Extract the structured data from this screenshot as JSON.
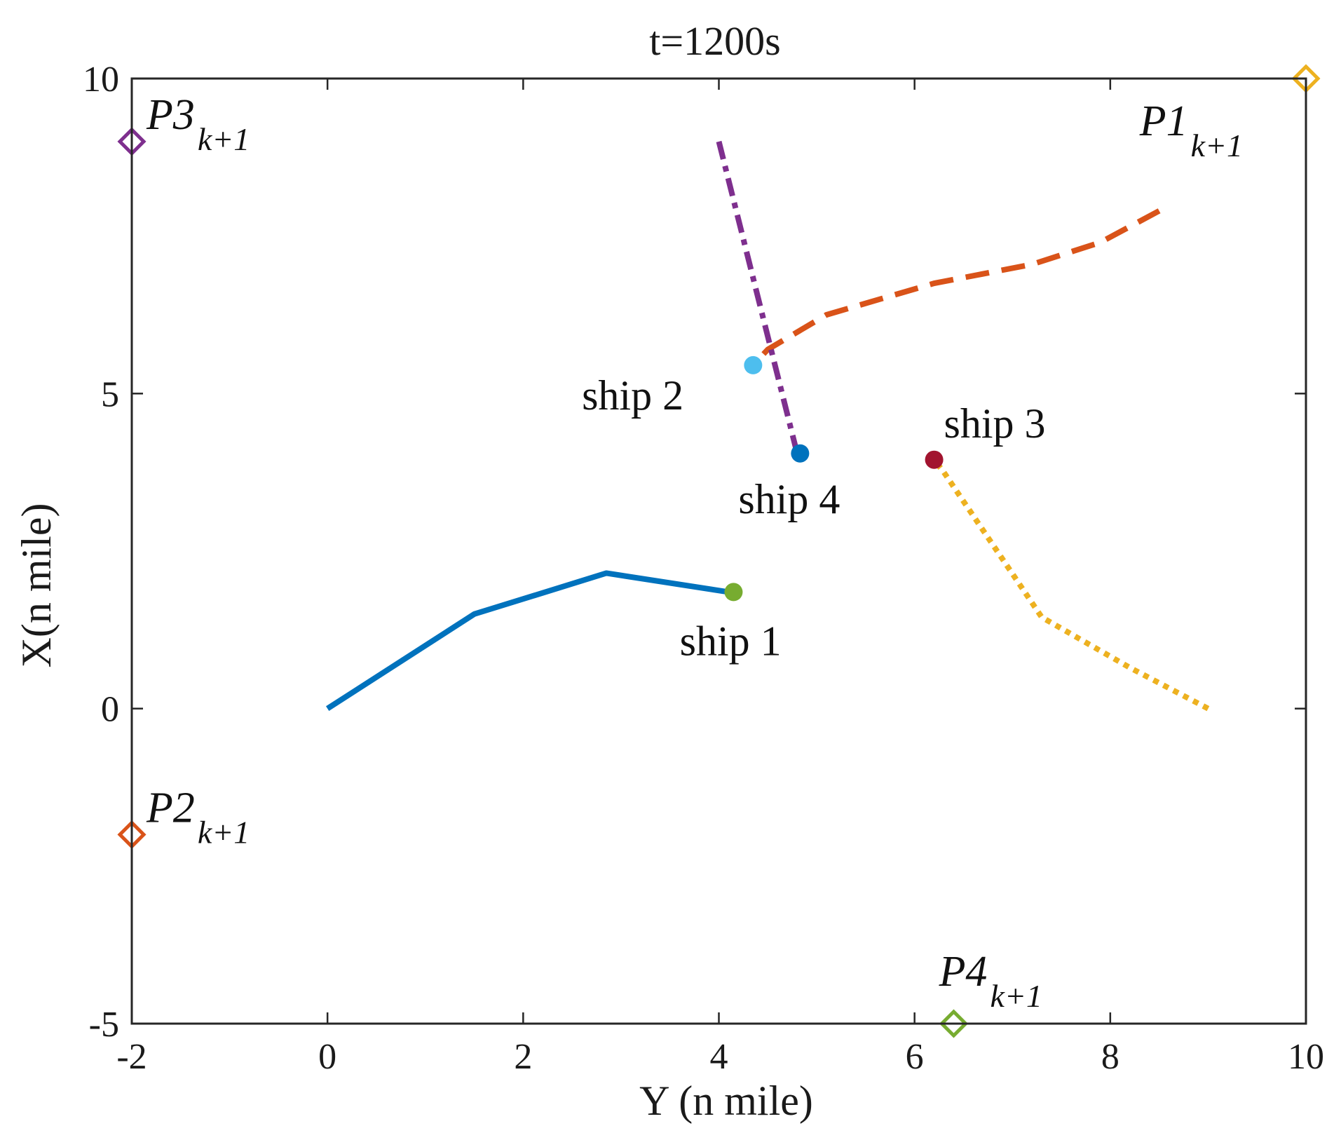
{
  "chart_data": {
    "type": "line",
    "title": "t=1200s",
    "xlabel": "Y (n mile)",
    "ylabel": "X(n mile)",
    "xlim": [
      -2,
      10
    ],
    "ylim": [
      -5,
      10
    ],
    "xticks": [
      -2,
      0,
      2,
      4,
      6,
      8,
      10
    ],
    "yticks": [
      -5,
      0,
      5,
      10
    ],
    "grid": false,
    "series": [
      {
        "label": "ship 1",
        "color": "#0072bd",
        "style": "solid",
        "points": [
          [
            0,
            0
          ],
          [
            1.5,
            1.5
          ],
          [
            2.85,
            2.15
          ],
          [
            4.1,
            1.85
          ]
        ],
        "position": [
          4.15,
          1.85
        ],
        "position_color": "#77ac30",
        "label_at": [
          3.6,
          0.85
        ]
      },
      {
        "label": "ship 2",
        "color": "#d95319",
        "style": "dashed",
        "points": [
          [
            8.5,
            7.9
          ],
          [
            7.9,
            7.4
          ],
          [
            7.2,
            7.05
          ],
          [
            6.2,
            6.75
          ],
          [
            5.1,
            6.25
          ],
          [
            4.5,
            5.7
          ],
          [
            4.35,
            5.45
          ]
        ],
        "position": [
          4.35,
          5.45
        ],
        "position_color": "#4dbeee",
        "label_at": [
          2.6,
          4.75
        ]
      },
      {
        "label": "ship 3",
        "color": "#edb120",
        "style": "dotted",
        "points": [
          [
            9.0,
            0
          ],
          [
            8.2,
            0.65
          ],
          [
            7.3,
            1.45
          ],
          [
            6.3,
            3.75
          ],
          [
            6.2,
            3.95
          ]
        ],
        "position": [
          6.2,
          3.95
        ],
        "position_color": "#a2142f",
        "label_at": [
          6.3,
          4.3
        ]
      },
      {
        "label": "ship 4",
        "color": "#7e2f8e",
        "style": "dashdot",
        "points": [
          [
            4.0,
            9.0
          ],
          [
            4.8,
            4.05
          ]
        ],
        "position": [
          4.83,
          4.05
        ],
        "position_color": "#0072bd",
        "label_at": [
          4.2,
          3.1
        ]
      }
    ],
    "markers": [
      {
        "base": "P1",
        "sub": "k+1",
        "x": 10,
        "y": 10,
        "color": "#edb120",
        "label_at": [
          8.3,
          9.1
        ]
      },
      {
        "base": "P2",
        "sub": "k+1",
        "x": -2,
        "y": -2,
        "color": "#d95319",
        "label_at": [
          -1.85,
          -1.8
        ]
      },
      {
        "base": "P3",
        "sub": "k+1",
        "x": -2,
        "y": 9,
        "color": "#7e2f8e",
        "label_at": [
          -1.85,
          9.2
        ]
      },
      {
        "base": "P4",
        "sub": "k+1",
        "x": 6.4,
        "y": -5,
        "color": "#77ac30",
        "label_at": [
          6.25,
          -4.4
        ]
      }
    ]
  }
}
